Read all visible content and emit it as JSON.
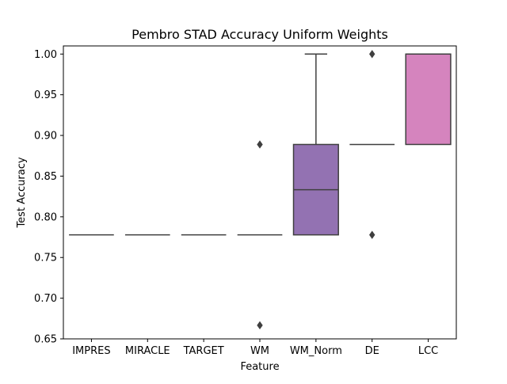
{
  "chart_data": {
    "type": "box",
    "title": "Pembro STAD Accuracy Uniform Weights",
    "xlabel": "Feature",
    "ylabel": "Test Accuracy",
    "ylim": [
      0.65,
      1.01
    ],
    "yticks": [
      0.65,
      0.7,
      0.75,
      0.8,
      0.85,
      0.9,
      0.95,
      1.0
    ],
    "ytick_labels": [
      "0.65",
      "0.70",
      "0.75",
      "0.80",
      "0.85",
      "0.90",
      "0.95",
      "1.00"
    ],
    "categories": [
      "IMPRES",
      "MIRACLE",
      "TARGET",
      "WM",
      "WM_Norm",
      "DE",
      "LCC"
    ],
    "boxes": [
      {
        "name": "IMPRES",
        "color": "#3b75af",
        "q1": 0.7778,
        "median": 0.7778,
        "q3": 0.7778,
        "whisker_low": 0.7778,
        "whisker_high": 0.7778,
        "outliers": []
      },
      {
        "name": "MIRACLE",
        "color": "#d4803a",
        "q1": 0.7778,
        "median": 0.7778,
        "q3": 0.7778,
        "whisker_low": 0.7778,
        "whisker_high": 0.7778,
        "outliers": []
      },
      {
        "name": "TARGET",
        "color": "#4f9c46",
        "q1": 0.7778,
        "median": 0.7778,
        "q3": 0.7778,
        "whisker_low": 0.7778,
        "whisker_high": 0.7778,
        "outliers": []
      },
      {
        "name": "WM",
        "color": "#c0393d",
        "q1": 0.7778,
        "median": 0.7778,
        "q3": 0.7778,
        "whisker_low": 0.7778,
        "whisker_high": 0.7778,
        "outliers": [
          0.8889,
          0.6667
        ]
      },
      {
        "name": "WM_Norm",
        "color": "#9372b2",
        "q1": 0.7778,
        "median": 0.8333,
        "q3": 0.8889,
        "whisker_low": 0.7778,
        "whisker_high": 1.0,
        "outliers": []
      },
      {
        "name": "DE",
        "color": "#8c6458",
        "q1": 0.8889,
        "median": 0.8889,
        "q3": 0.8889,
        "whisker_low": 0.8889,
        "whisker_high": 0.8889,
        "outliers": [
          1.0,
          0.7778
        ]
      },
      {
        "name": "LCC",
        "color": "#d584be",
        "q1": 0.8889,
        "median": 1.0,
        "q3": 1.0,
        "whisker_low": 0.8889,
        "whisker_high": 1.0,
        "outliers": []
      }
    ],
    "line_color": "#3f3f3f",
    "grid": false,
    "legend": "none"
  }
}
